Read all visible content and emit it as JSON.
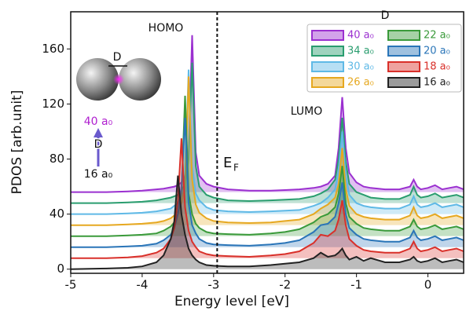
{
  "chart_data": {
    "type": "line",
    "x_label": "Energy level [eV]",
    "y_label": "PDOS [arb.unit]",
    "xlim": [
      -5,
      0.5
    ],
    "ylim": [
      -3,
      187
    ],
    "xticks": [
      -5,
      -4,
      -3,
      -2,
      -1,
      0
    ],
    "yticks": [
      0,
      40,
      80,
      120,
      160
    ],
    "legend_title": "D",
    "legend_position": "upper right",
    "fermi_level": -2.95,
    "annotations": {
      "homo": "HOMO",
      "lumo": "LUMO",
      "fermi_main": "E",
      "fermi_sub": "F"
    },
    "inset": {
      "gap_label": "D",
      "top_label": "40 a₀",
      "arrow_label": "D",
      "bottom_label": "16 a₀"
    },
    "x": [
      -5,
      -4.5,
      -4.2,
      -4.0,
      -3.8,
      -3.7,
      -3.6,
      -3.55,
      -3.5,
      -3.45,
      -3.4,
      -3.35,
      -3.3,
      -3.25,
      -3.2,
      -3.1,
      -3.0,
      -2.8,
      -2.5,
      -2.2,
      -2.0,
      -1.8,
      -1.6,
      -1.5,
      -1.4,
      -1.3,
      -1.25,
      -1.2,
      -1.15,
      -1.1,
      -1.0,
      -0.9,
      -0.8,
      -0.6,
      -0.4,
      -0.25,
      -0.2,
      -0.15,
      -0.1,
      0,
      0.1,
      0.2,
      0.3,
      0.4,
      0.5
    ],
    "series": [
      {
        "name": "40 a₀",
        "color": "#9b30d0",
        "values": [
          56,
          56,
          56.5,
          57,
          58,
          58.5,
          59.5,
          60,
          61,
          63,
          67,
          85,
          170,
          85,
          68,
          62,
          60,
          58,
          57,
          57,
          57.5,
          58,
          59,
          60,
          62,
          68,
          88,
          125,
          88,
          70,
          63,
          60,
          59,
          58,
          58,
          60,
          65,
          60,
          58,
          59,
          61,
          58,
          59,
          60,
          58
        ]
      },
      {
        "name": "34 a₀",
        "color": "#2a9d6f",
        "values": [
          48,
          48,
          48.5,
          49,
          50,
          51,
          52,
          53,
          54,
          57,
          62,
          80,
          150,
          75,
          60,
          54,
          52,
          50,
          49.5,
          50,
          50.5,
          51,
          53,
          55,
          58,
          65,
          80,
          110,
          78,
          62,
          56,
          54,
          52,
          51,
          51,
          54,
          60,
          54,
          52,
          53,
          55,
          52,
          53,
          54,
          52
        ]
      },
      {
        "name": "30 a₀",
        "color": "#5fb9e6",
        "values": [
          40,
          40,
          40.5,
          41,
          42,
          43,
          44,
          46,
          48,
          52,
          62,
          145,
          75,
          55,
          50,
          45,
          43,
          42,
          41.5,
          42,
          42.5,
          43,
          46,
          48,
          52,
          58,
          72,
          100,
          68,
          54,
          48,
          46,
          45,
          44,
          44,
          47,
          53,
          47,
          45,
          46,
          48,
          45,
          46,
          47,
          45
        ]
      },
      {
        "name": "26 a₀",
        "color": "#e6a820",
        "values": [
          32,
          32,
          32.5,
          33,
          34,
          35,
          37,
          39,
          42,
          48,
          60,
          140,
          65,
          47,
          41,
          37,
          35,
          34,
          33.5,
          34,
          35,
          36,
          40,
          44,
          47,
          52,
          62,
          88,
          58,
          46,
          40,
          38,
          37,
          36,
          36,
          39,
          45,
          39,
          37,
          38,
          40,
          37,
          38,
          39,
          37
        ]
      },
      {
        "name": "22 a₀",
        "color": "#3a9a3a",
        "values": [
          24,
          24,
          24.5,
          25,
          26,
          28,
          31,
          34,
          40,
          55,
          126,
          55,
          40,
          33,
          30,
          27,
          26,
          25.5,
          25,
          26,
          27,
          29,
          34,
          38,
          40,
          45,
          55,
          75,
          48,
          38,
          33,
          30,
          29,
          28,
          28,
          31,
          36,
          31,
          29,
          30,
          32,
          29,
          30,
          31,
          29
        ]
      },
      {
        "name": "20 a₀",
        "color": "#2a75b8",
        "values": [
          16,
          16,
          16.5,
          17,
          18.5,
          21,
          25,
          30,
          40,
          60,
          110,
          48,
          32,
          26,
          22,
          19,
          18,
          17.5,
          17,
          18,
          19,
          21,
          27,
          32,
          33,
          38,
          48,
          63,
          40,
          30,
          25,
          22,
          21,
          20,
          20,
          23,
          28,
          23,
          21,
          22,
          24,
          21,
          22,
          23,
          21
        ]
      },
      {
        "name": "18 a₀",
        "color": "#d9302a",
        "values": [
          8,
          8,
          8.5,
          9.5,
          12,
          15,
          22,
          30,
          50,
          95,
          45,
          28,
          20,
          16,
          13,
          11,
          10,
          9.5,
          9,
          10,
          11,
          13,
          19,
          25,
          24,
          28,
          36,
          50,
          32,
          22,
          17,
          14,
          13,
          12,
          12,
          15,
          20,
          15,
          13,
          14,
          16,
          13,
          14,
          15,
          13
        ]
      },
      {
        "name": "16 a₀",
        "color": "#222222",
        "values": [
          0,
          0.5,
          1,
          2,
          5,
          10,
          22,
          35,
          68,
          40,
          25,
          15,
          10,
          7,
          5,
          3,
          2.5,
          2,
          2,
          3,
          4,
          5,
          8,
          12,
          9,
          10,
          12,
          15,
          10,
          7,
          9,
          6,
          8,
          5,
          5,
          7,
          9,
          6,
          5,
          6,
          8,
          5,
          6,
          7,
          5
        ]
      }
    ]
  }
}
